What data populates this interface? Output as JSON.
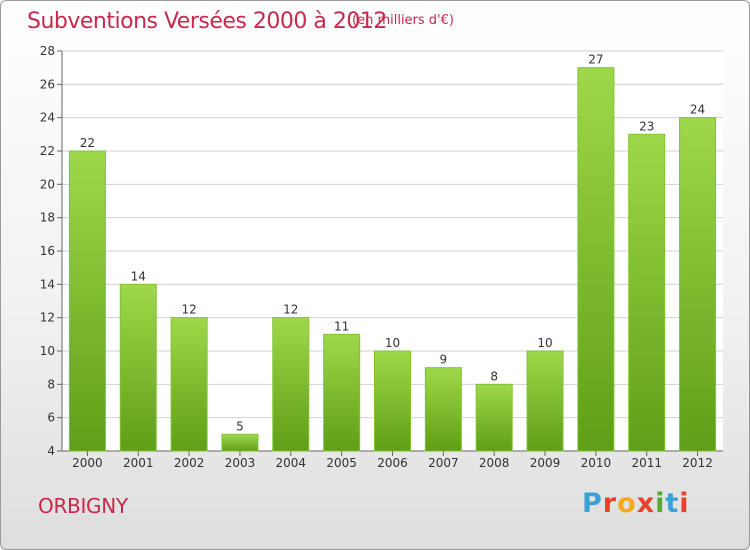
{
  "header": {
    "title": "Subventions Versées 2000 à 2012",
    "subtitle": "(en milliers d'€)"
  },
  "footer": {
    "place": "ORBIGNY",
    "logo_letters": [
      "P",
      "r",
      "o",
      "x",
      "i",
      "t",
      "i"
    ],
    "logo_colors": [
      "#3aa0d8",
      "#e8412c",
      "#f6a91a",
      "#e8412c",
      "#59a92e",
      "#3aa0d8",
      "#e8412c"
    ]
  },
  "colors": {
    "bar_light": "#9fd84a",
    "bar_dark": "#5f9e16",
    "title": "#c8284c",
    "grid": "#d0d0d0"
  },
  "chart_data": {
    "type": "bar",
    "categories": [
      "2000",
      "2001",
      "2002",
      "2003",
      "2004",
      "2005",
      "2006",
      "2007",
      "2008",
      "2009",
      "2010",
      "2011",
      "2012"
    ],
    "values": [
      22,
      14,
      12,
      5,
      12,
      11,
      10,
      9,
      8,
      10,
      27,
      23,
      24
    ],
    "title": "Subventions Versées 2000 à 2012",
    "ylabel": "",
    "xlabel": "",
    "ylim": [
      4,
      28
    ],
    "yticks": [
      4,
      6,
      8,
      10,
      12,
      14,
      16,
      18,
      20,
      22,
      24,
      26,
      28
    ],
    "grid": true
  }
}
